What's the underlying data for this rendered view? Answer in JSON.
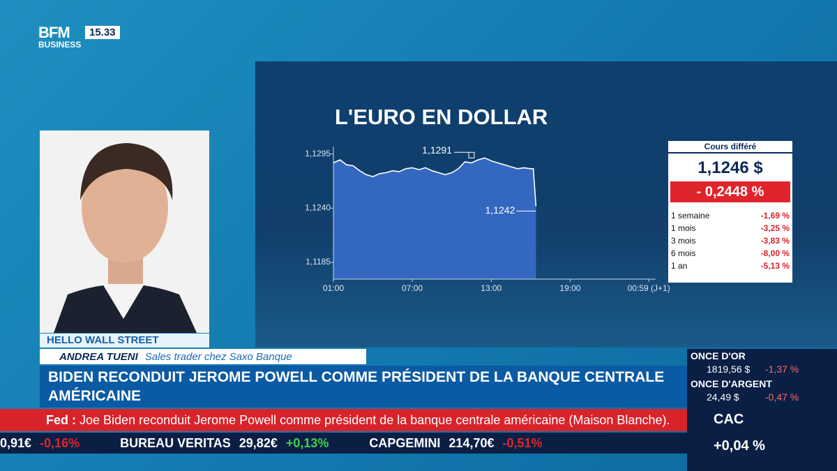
{
  "chart_data": {
    "type": "line",
    "title": "L'EURO EN DOLLAR",
    "x": [
      0,
      0.5,
      1,
      1.5,
      2,
      2.5,
      3,
      3.5,
      4,
      4.5,
      5,
      5.5,
      6,
      6.5,
      7,
      7.5,
      8,
      8.5,
      9,
      9.5,
      10,
      10.5,
      11,
      11.5,
      12,
      12.5,
      13,
      13.5,
      14,
      14.5,
      15,
      15.2,
      15.4
    ],
    "series": [
      {
        "name": "EUR/USD",
        "color": "#ffffff",
        "values": [
          1.1286,
          1.1289,
          1.1284,
          1.1283,
          1.1278,
          1.1274,
          1.1272,
          1.1275,
          1.1276,
          1.1278,
          1.1277,
          1.128,
          1.1281,
          1.1279,
          1.1281,
          1.1278,
          1.1276,
          1.1274,
          1.1276,
          1.128,
          1.1287,
          1.1286,
          1.1289,
          1.1291,
          1.1288,
          1.1286,
          1.1284,
          1.1282,
          1.128,
          1.1281,
          1.128,
          1.128,
          1.1242
        ]
      }
    ],
    "xlim": [
      0,
      24.5
    ],
    "xticks": [
      {
        "value": 0,
        "label": "01:00"
      },
      {
        "value": 6,
        "label": "07:00"
      },
      {
        "value": 12,
        "label": "13:00"
      },
      {
        "value": 18,
        "label": "19:00"
      },
      {
        "value": 23.98,
        "label": "00:59 (J+1)"
      }
    ],
    "ylim": [
      1.1168,
      1.1299
    ],
    "yticks": [
      {
        "value": 1.1295,
        "label": "1,1295"
      },
      {
        "value": 1.124,
        "label": "1,1240"
      },
      {
        "value": 1.1185,
        "label": "1,1185"
      }
    ],
    "annotations": [
      {
        "text": "1,1291",
        "x": 10.5,
        "y": 1.1291
      },
      {
        "text": "1,1242",
        "x": 15.4,
        "y": 1.1242
      }
    ],
    "fill_color": "#3468c0"
  },
  "quote": {
    "header": "Cours différé",
    "price": "1,1246 $",
    "change": "- 0,2448 %",
    "rows": [
      [
        "1 semaine",
        "-1,69 %"
      ],
      [
        "1 mois",
        "-3,25 %"
      ],
      [
        "3 mois",
        "-3,83 %"
      ],
      [
        "6 mois",
        "-8,00 %"
      ],
      [
        "1 an",
        "-5,13 %"
      ]
    ]
  },
  "logo": {
    "brand": "BFM",
    "sub": "BUSINESS",
    "time": "15.33"
  },
  "show": "HELLO WALL STREET",
  "guest": {
    "name": "ANDREA TUENI",
    "role": "Sales trader chez Saxo Banque"
  },
  "headline": "BIDEN RECONDUIT JEROME POWELL COMME PRÉSIDENT DE LA BANQUE CENTRALE AMÉRICAINE",
  "news": {
    "tag": "Fed :",
    "text": "Joe Biden reconduit Jerome Powell comme président de la banque centrale américaine (Maison Blanche)."
  },
  "ticker": [
    [
      "",
      "0,91€",
      "-0,16%"
    ],
    [
      "BUREAU VERITAS",
      "29,82€",
      "+0,13%"
    ],
    [
      "CAPGEMINI",
      "214,70€",
      "-0,51%"
    ]
  ],
  "markets": [
    {
      "name": "ONCE D'OR",
      "price": "1819,56 $",
      "change": "-1,37 %"
    },
    {
      "name": "ONCE D'ARGENT",
      "price": "24,49 $",
      "change": "-0,47 %"
    }
  ],
  "index": {
    "name": "CAC",
    "change": "+0,04 %"
  }
}
